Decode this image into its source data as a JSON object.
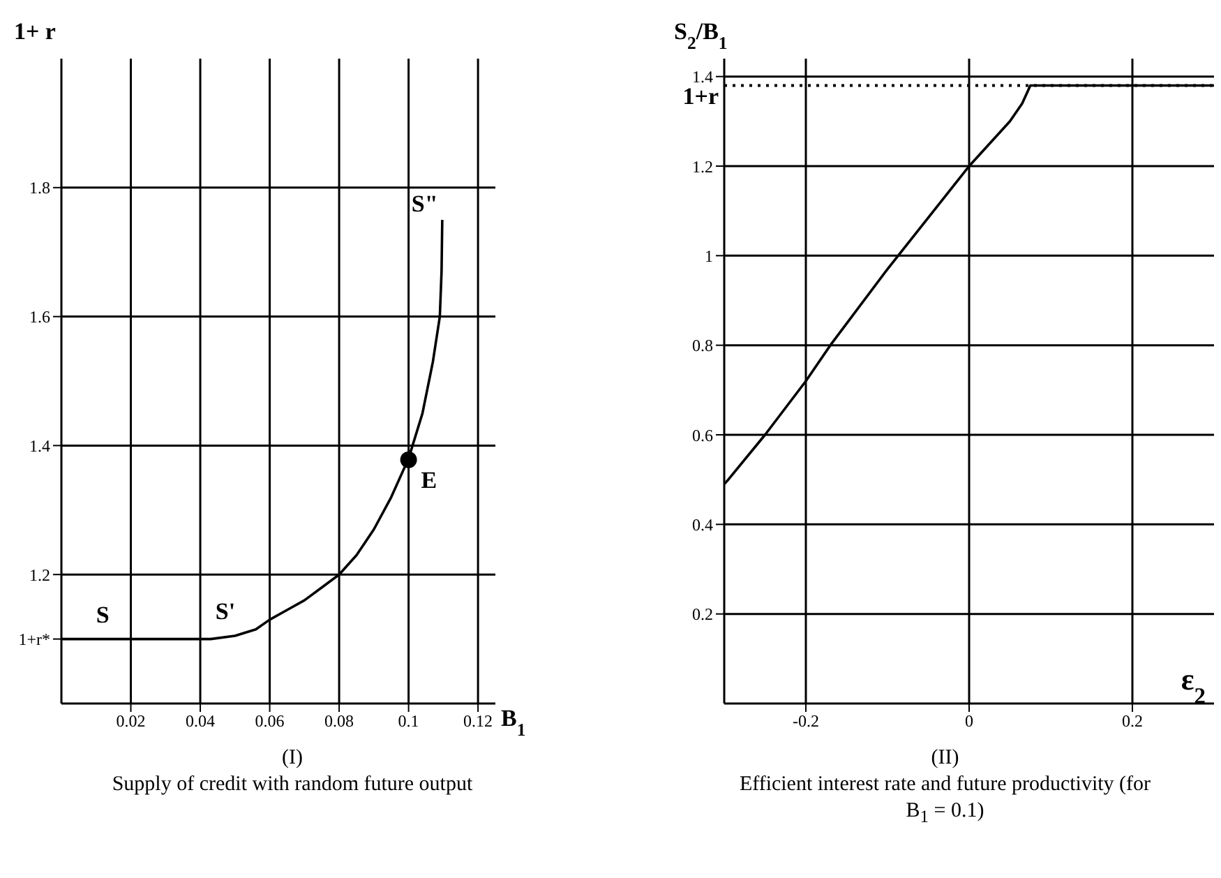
{
  "chart_data": [
    {
      "type": "line",
      "title": "(I)",
      "xlabel": "B$_{1}$",
      "ylabel": "1+  r",
      "xlim": [
        0,
        0.125
      ],
      "xticks": [
        0.02,
        0.04,
        0.06,
        0.08,
        0.1,
        0.12
      ],
      "ylim": [
        1,
        2
      ],
      "yticks": [
        {
          "value": 1.1,
          "label": "1+r*"
        },
        1.2,
        1.4,
        1.6,
        1.8
      ],
      "grid": true,
      "marker": "none",
      "line_style": "solid",
      "series": [
        {
          "color": "#000000",
          "x": [
            0,
            0.043,
            0.05,
            0.056,
            0.06,
            0.065,
            0.07,
            0.075,
            0.08,
            0.085,
            0.09,
            0.095,
            0.1,
            0.104,
            0.107,
            0.109,
            0.1095,
            0.1097
          ],
          "values": [
            1.1,
            1.1,
            1.105,
            1.115,
            1.13,
            1.145,
            1.16,
            1.18,
            1.2,
            1.23,
            1.27,
            1.32,
            1.38,
            1.45,
            1.53,
            1.6,
            1.67,
            1.75
          ]
        },
        {
          "type": "scatter",
          "marker": "circle",
          "color": "#000000",
          "x": [
            0.1
          ],
          "values": [
            1.378
          ]
        }
      ],
      "annotations": [
        {
          "text": "S",
          "x": 0.01,
          "y": 1.1
        },
        {
          "text": "S'",
          "x": 0.05,
          "y": 1.105
        },
        {
          "text": "S\"",
          "x": 0.1097,
          "y": 1.75
        },
        {
          "text": "E",
          "x": 0.1,
          "y": 1.378
        },
        "Supply of credit with random future output"
      ]
    },
    {
      "type": "line",
      "title": "(II)",
      "xlabel": "ε$_{2}$",
      "ylabel": "S$_{2}$/B$_{1}$",
      "xlim": [
        -0.3,
        0.3
      ],
      "xticks": [
        -0.2,
        0,
        0.2
      ],
      "ylim": [
        0,
        1.44
      ],
      "yticks": [
        0.2,
        0.4,
        0.6,
        0.8,
        1,
        1.2,
        1.4
      ],
      "grid": true,
      "marker": "none",
      "line_style": "solid",
      "series": [
        {
          "color": "#000000",
          "x": [
            -0.3,
            -0.295,
            -0.25,
            -0.2,
            -0.17,
            -0.1,
            0,
            0.05,
            0.065,
            0.075,
            0.3
          ],
          "values": [
            0.49,
            0.5,
            0.6,
            0.72,
            0.8,
            0.97,
            1.2,
            1.3,
            1.34,
            1.38,
            1.38
          ]
        }
      ],
      "ref_lines": [
        {
          "axis": "y",
          "value": 1.38,
          "label": "1+r",
          "line_style": "dotted",
          "color": "#000000"
        }
      ],
      "annotations": [
        "Efficient interest rate and future productivity (for B$_{1}$ = 0.1)"
      ]
    }
  ]
}
